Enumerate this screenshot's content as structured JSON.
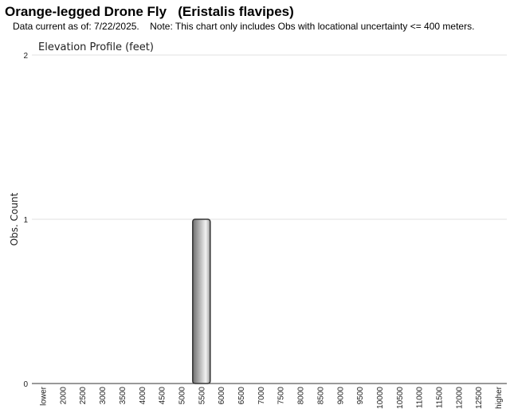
{
  "header": {
    "title": "Orange-legged Drone Fly   (Eristalis flavipes)",
    "subtitle": "Data current as of: 7/22/2025.    Note: This chart only includes Obs with locational uncertainty <= 400 meters."
  },
  "chart_data": {
    "type": "bar",
    "title": "Elevation Profile (feet)",
    "ylabel": "Obs. Count",
    "xlabel": "",
    "ylim": [
      0,
      2
    ],
    "yticks": [
      0,
      1,
      2
    ],
    "grid": true,
    "categories": [
      "lower",
      "2000",
      "2500",
      "3000",
      "3500",
      "4000",
      "4500",
      "5000",
      "5500",
      "6000",
      "6500",
      "7000",
      "7500",
      "8000",
      "8500",
      "9000",
      "9500",
      "10000",
      "10500",
      "11000",
      "11500",
      "12000",
      "12500",
      "higher"
    ],
    "values": [
      0,
      0,
      0,
      0,
      0,
      0,
      0,
      0,
      1,
      0,
      0,
      0,
      0,
      0,
      0,
      0,
      0,
      0,
      0,
      0,
      0,
      0,
      0,
      0
    ]
  }
}
